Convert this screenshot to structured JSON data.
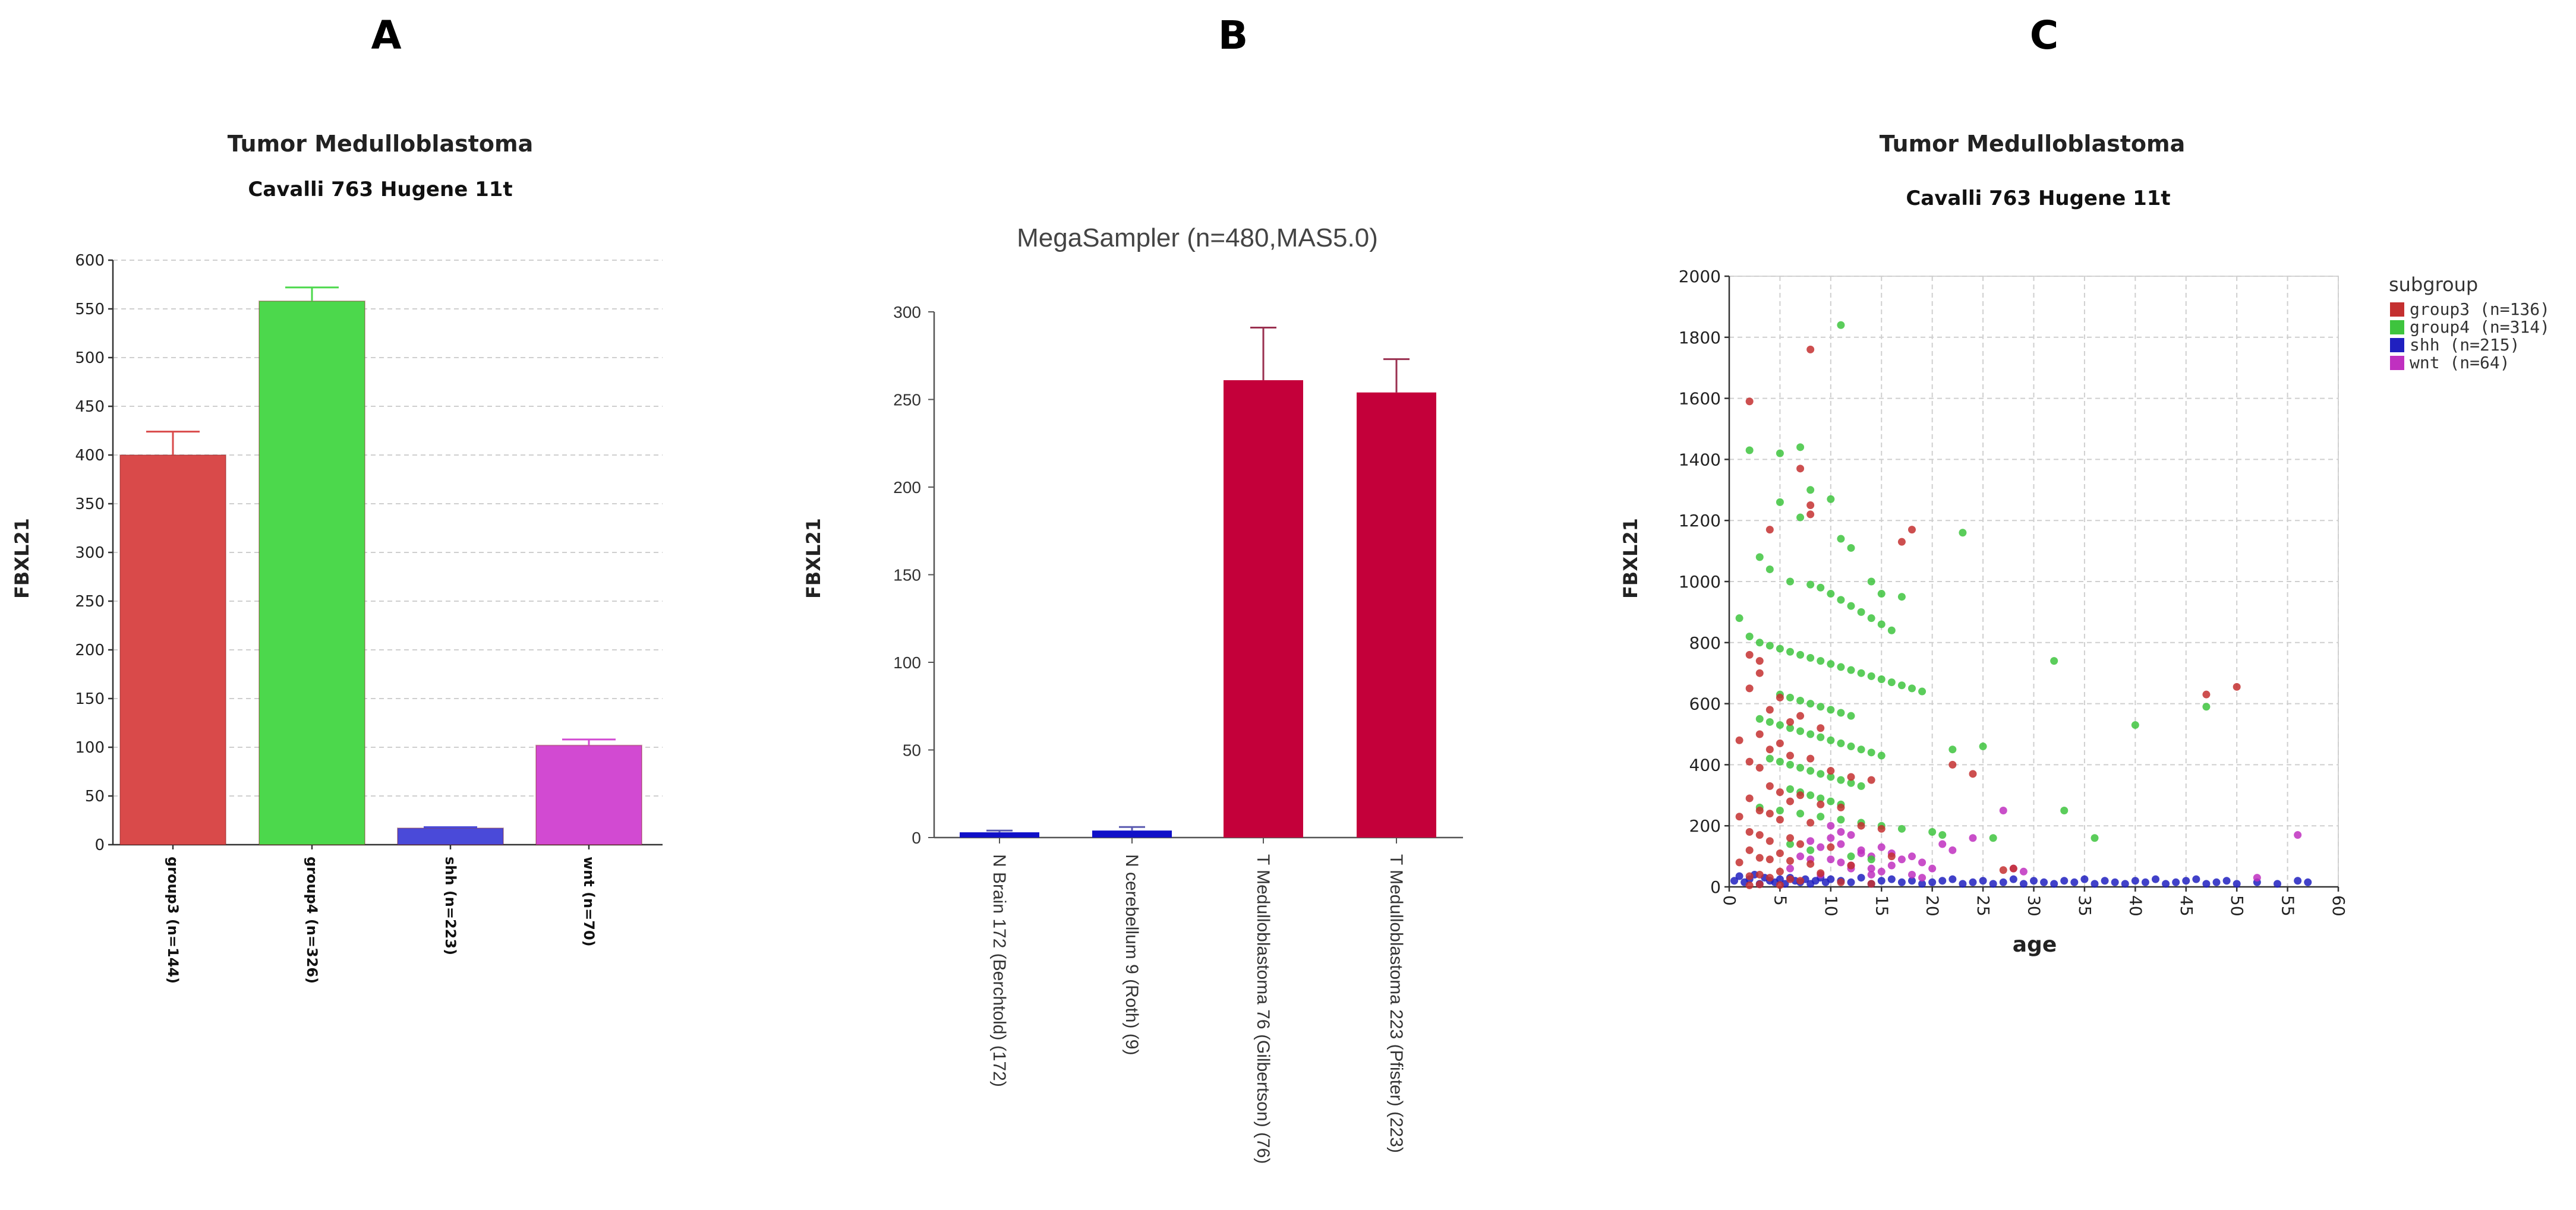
{
  "panels": {
    "a": {
      "letter": "A",
      "title": "Tumor Medulloblastoma",
      "subtitle": "Cavalli 763 Hugene 11t"
    },
    "b": {
      "letter": "B",
      "title": "MegaSampler (n=480,MAS5.0)"
    },
    "c": {
      "letter": "C",
      "title": "Tumor Medulloblastoma",
      "subtitle": "Cavalli 763 Hugene 11t"
    }
  },
  "colors": {
    "red": "#d94a4a",
    "green": "#4cd84c",
    "blue": "#4a4ad9",
    "magenta": "#d24ad2",
    "crimson": "#c4003a",
    "navy": "#1010c8"
  },
  "chart_data": [
    {
      "type": "bar",
      "title": "Tumor Medulloblastoma",
      "subtitle": "Cavalli 763 Hugene 11t",
      "ylabel": "FBXL21",
      "xlabel": "",
      "ylim": [
        0,
        600
      ],
      "yticks": [
        0,
        50,
        100,
        150,
        200,
        250,
        300,
        350,
        400,
        450,
        500,
        550,
        600
      ],
      "grid": true,
      "categories": [
        "group3 (n=144)",
        "group4 (n=326)",
        "shh (n=223)",
        "wnt (n=70)"
      ],
      "values": [
        400,
        558,
        17,
        102
      ],
      "error": [
        24,
        14,
        1,
        6
      ],
      "colors": [
        "#d94a4a",
        "#4cd84c",
        "#4a4ad9",
        "#d24ad2"
      ]
    },
    {
      "type": "bar",
      "title": "MegaSampler (n=480,MAS5.0)",
      "ylabel": "FBXL21",
      "xlabel": "",
      "ylim": [
        0,
        300
      ],
      "yticks": [
        0,
        50,
        100,
        150,
        200,
        250,
        300
      ],
      "grid": false,
      "categories": [
        "N Brain 172 (Berchtold) (172)",
        "N cerebellum 9 (Roth) (9)",
        "T Medulloblastoma 76 (Gilbertson) (76)",
        "T Medulloblastoma 223 (Pfister) (223)"
      ],
      "values": [
        3,
        4,
        261,
        254
      ],
      "error": [
        1,
        2,
        30,
        19
      ],
      "colors": [
        "#1010c8",
        "#1010c8",
        "#c4003a",
        "#c4003a"
      ]
    },
    {
      "type": "scatter",
      "title": "Tumor Medulloblastoma",
      "subtitle": "Cavalli 763 Hugene 11t",
      "xlabel": "age",
      "ylabel": "FBXL21",
      "xlim": [
        0,
        60
      ],
      "ylim": [
        0,
        2000
      ],
      "xticks": [
        0,
        5,
        10,
        15,
        20,
        25,
        30,
        35,
        40,
        45,
        50,
        55,
        60
      ],
      "yticks": [
        0,
        200,
        400,
        600,
        800,
        1000,
        1200,
        1400,
        1600,
        1800,
        2000
      ],
      "grid": true,
      "legend_title": "subgroup",
      "legend_position": "top-right, outside plot",
      "series": [
        {
          "name": "group3 (n=136)",
          "color": "#c43030",
          "x": [
            2,
            8,
            7,
            8,
            8,
            4,
            2,
            3,
            18,
            17,
            47,
            50,
            22,
            24,
            3,
            2,
            5,
            4,
            7,
            6,
            9,
            3,
            1,
            5,
            4,
            6,
            8,
            2,
            3,
            10,
            12,
            14,
            4,
            5,
            7,
            2,
            6,
            9,
            11,
            3,
            4,
            1,
            5,
            8,
            13,
            15,
            2,
            3,
            6,
            4,
            7,
            10,
            2,
            5,
            16,
            3,
            4,
            6,
            1,
            8,
            12,
            28,
            27,
            5,
            9,
            3,
            2,
            4,
            6,
            7,
            11,
            14,
            3,
            5,
            2
          ],
          "y": [
            1590,
            1760,
            1370,
            1250,
            1220,
            1170,
            760,
            740,
            1170,
            1130,
            630,
            655,
            400,
            370,
            700,
            650,
            620,
            580,
            560,
            540,
            520,
            500,
            480,
            470,
            450,
            430,
            420,
            410,
            390,
            380,
            360,
            350,
            330,
            310,
            300,
            290,
            280,
            270,
            260,
            250,
            240,
            230,
            220,
            210,
            200,
            190,
            180,
            170,
            160,
            150,
            140,
            130,
            120,
            110,
            100,
            95,
            90,
            85,
            80,
            75,
            70,
            60,
            55,
            50,
            45,
            40,
            35,
            30,
            25,
            20,
            15,
            10,
            8,
            6,
            5
          ]
        },
        {
          "name": "group4 (n=314)",
          "color": "#3ec43e",
          "x": [
            11,
            2,
            7,
            5,
            8,
            10,
            5,
            7,
            11,
            12,
            14,
            17,
            15,
            23,
            40,
            47,
            32,
            25,
            33,
            36,
            22,
            3,
            4,
            6,
            8,
            9,
            10,
            11,
            12,
            13,
            14,
            15,
            16,
            2,
            3,
            4,
            5,
            6,
            7,
            8,
            9,
            10,
            11,
            12,
            13,
            14,
            15,
            16,
            17,
            18,
            19,
            5,
            6,
            7,
            8,
            9,
            10,
            11,
            12,
            3,
            4,
            5,
            6,
            7,
            8,
            9,
            10,
            11,
            12,
            13,
            14,
            15,
            4,
            5,
            6,
            7,
            8,
            9,
            10,
            11,
            12,
            13,
            6,
            7,
            8,
            9,
            10,
            11,
            3,
            5,
            7,
            9,
            11,
            13,
            15,
            17,
            20,
            21,
            26,
            1,
            6,
            8,
            12,
            14
          ],
          "y": [
            1840,
            1430,
            1440,
            1420,
            1300,
            1270,
            1260,
            1210,
            1140,
            1110,
            1000,
            950,
            960,
            1160,
            530,
            590,
            740,
            460,
            250,
            160,
            450,
            1080,
            1040,
            1000,
            990,
            980,
            960,
            940,
            920,
            900,
            880,
            860,
            840,
            820,
            800,
            790,
            780,
            770,
            760,
            750,
            740,
            730,
            720,
            710,
            700,
            690,
            680,
            670,
            660,
            650,
            640,
            630,
            620,
            610,
            600,
            590,
            580,
            570,
            560,
            550,
            540,
            530,
            520,
            510,
            500,
            490,
            480,
            470,
            460,
            450,
            440,
            430,
            420,
            410,
            400,
            390,
            380,
            370,
            360,
            350,
            340,
            330,
            320,
            310,
            300,
            290,
            280,
            270,
            260,
            250,
            240,
            230,
            220,
            210,
            200,
            190,
            180,
            170,
            160,
            880,
            140,
            120,
            100,
            90
          ]
        },
        {
          "name": "shh (n=215)",
          "color": "#2020c0",
          "x": [
            0.5,
            1,
            1.5,
            2,
            2.5,
            3,
            3.5,
            4,
            4.5,
            5,
            5.5,
            6,
            6.5,
            7,
            7.5,
            8,
            8.5,
            9,
            9.5,
            10,
            11,
            12,
            13,
            14,
            15,
            16,
            17,
            18,
            19,
            20,
            21,
            22,
            23,
            24,
            25,
            26,
            27,
            28,
            29,
            30,
            31,
            32,
            33,
            34,
            35,
            36,
            37,
            38,
            39,
            40,
            41,
            42,
            43,
            44,
            45,
            46,
            47,
            48,
            49,
            50,
            52,
            54,
            56,
            57
          ],
          "y": [
            20,
            35,
            15,
            25,
            40,
            10,
            30,
            20,
            15,
            25,
            10,
            30,
            20,
            15,
            25,
            10,
            20,
            30,
            15,
            25,
            20,
            15,
            30,
            10,
            20,
            25,
            15,
            20,
            10,
            15,
            20,
            25,
            10,
            15,
            20,
            10,
            15,
            25,
            10,
            20,
            15,
            10,
            20,
            15,
            25,
            10,
            20,
            15,
            10,
            20,
            15,
            25,
            10,
            15,
            20,
            25,
            10,
            15,
            20,
            10,
            15,
            10,
            20,
            15
          ]
        },
        {
          "name": "wnt (n=64)",
          "color": "#c030c0",
          "x": [
            8,
            9,
            10,
            11,
            12,
            13,
            14,
            15,
            16,
            17,
            18,
            19,
            20,
            21,
            22,
            24,
            27,
            28,
            11,
            12,
            13,
            14,
            9,
            10,
            15,
            16,
            7,
            6,
            18,
            19,
            56,
            52,
            29,
            10,
            11,
            12,
            8,
            14
          ],
          "y": [
            150,
            130,
            160,
            140,
            170,
            120,
            100,
            130,
            110,
            90,
            100,
            80,
            60,
            140,
            120,
            160,
            250,
            60,
            80,
            70,
            110,
            60,
            40,
            90,
            50,
            70,
            100,
            60,
            40,
            30,
            170,
            30,
            50,
            200,
            180,
            60,
            90,
            40
          ]
        }
      ]
    }
  ]
}
